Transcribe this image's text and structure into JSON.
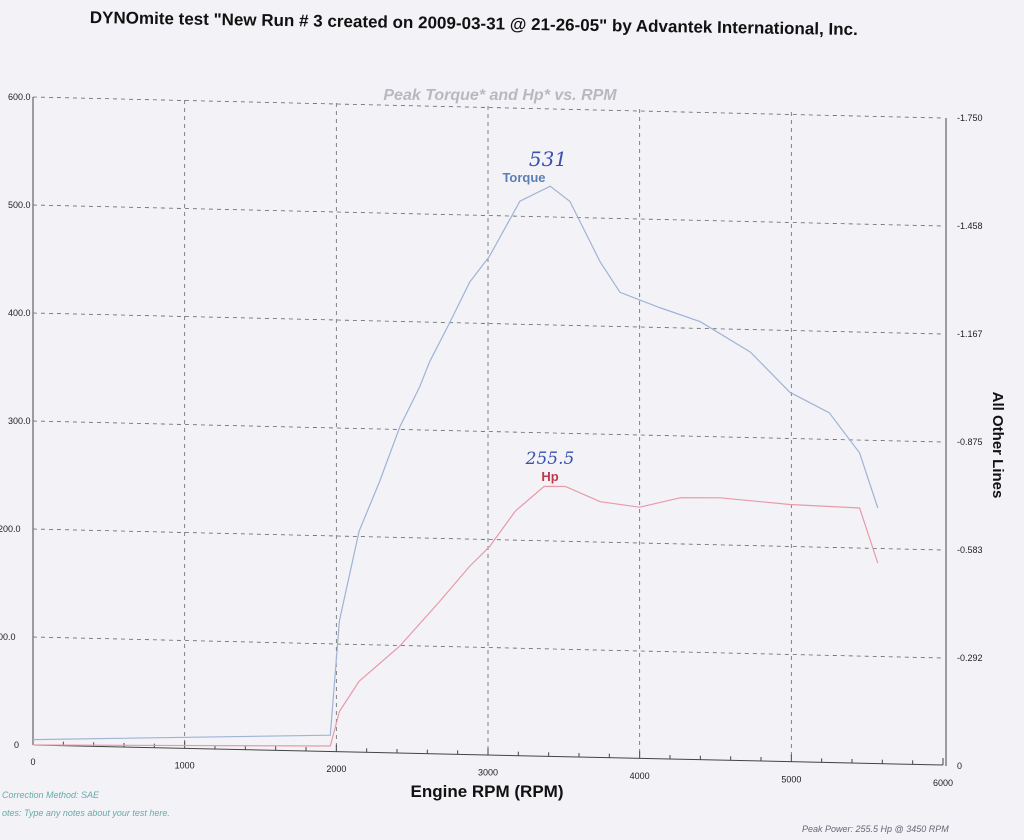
{
  "header": {
    "title": "DYNOmite test \"New Run # 3 created on 2009-03-31 @ 21-26-05\" by Advantek International, Inc."
  },
  "chart_data": {
    "type": "line",
    "title": "Peak Torque* and Hp* vs. RPM",
    "xlabel": "Engine RPM (RPM)",
    "ylabel_right": "All Other Lines",
    "xlim": [
      0,
      6000
    ],
    "ylim": [
      0,
      600
    ],
    "ylim_right": [
      0,
      1.75
    ],
    "grid": true,
    "x_ticks": [
      "0",
      "1000",
      "2000",
      "3000",
      "4000",
      "5000",
      "6000"
    ],
    "y_ticks": [
      "0",
      "00.0",
      "200.0",
      "300.0",
      "400.0",
      "500.0",
      "600.0"
    ],
    "y_right_ticks": [
      "0",
      "-0.292",
      "-0.583",
      "-0.875",
      "-1.167",
      "-1.458",
      "-1.750"
    ],
    "series": [
      {
        "name": "Torque",
        "color": "#9fb3d6",
        "label_color": "#5b7fb5",
        "x": [
          0,
          1960,
          2020,
          2150,
          2285,
          2420,
          2550,
          2615,
          2750,
          2880,
          3010,
          3210,
          3410,
          3540,
          3740,
          3870,
          4130,
          4400,
          4730,
          4990,
          5250,
          5450,
          5570
        ],
        "y": [
          5,
          10,
          116,
          199,
          245,
          296,
          333,
          356,
          393,
          430,
          454,
          505,
          519,
          505,
          449,
          421,
          407,
          394,
          366,
          329,
          310,
          273,
          222
        ]
      },
      {
        "name": "Hp",
        "color": "#e89aa6",
        "label_color": "#c0394b",
        "x": [
          0,
          1960,
          2020,
          2150,
          2420,
          2680,
          2880,
          3010,
          3180,
          3370,
          3510,
          3740,
          4000,
          4270,
          4530,
          4990,
          5450,
          5570
        ],
        "y": [
          0,
          0,
          32,
          60,
          93,
          134,
          167,
          185,
          218,
          241,
          241,
          227,
          222,
          231,
          231,
          225,
          222,
          171
        ]
      }
    ],
    "annotations": [
      {
        "text": "531",
        "near": "Torque"
      },
      {
        "text": "255.5",
        "near": "Hp"
      }
    ]
  },
  "footer": {
    "correction": "Correction Method: SAE",
    "notes": "otes: Type any notes about your test here.",
    "peak_power": "Peak Power: 255.5 Hp @ 3450 RPM"
  }
}
